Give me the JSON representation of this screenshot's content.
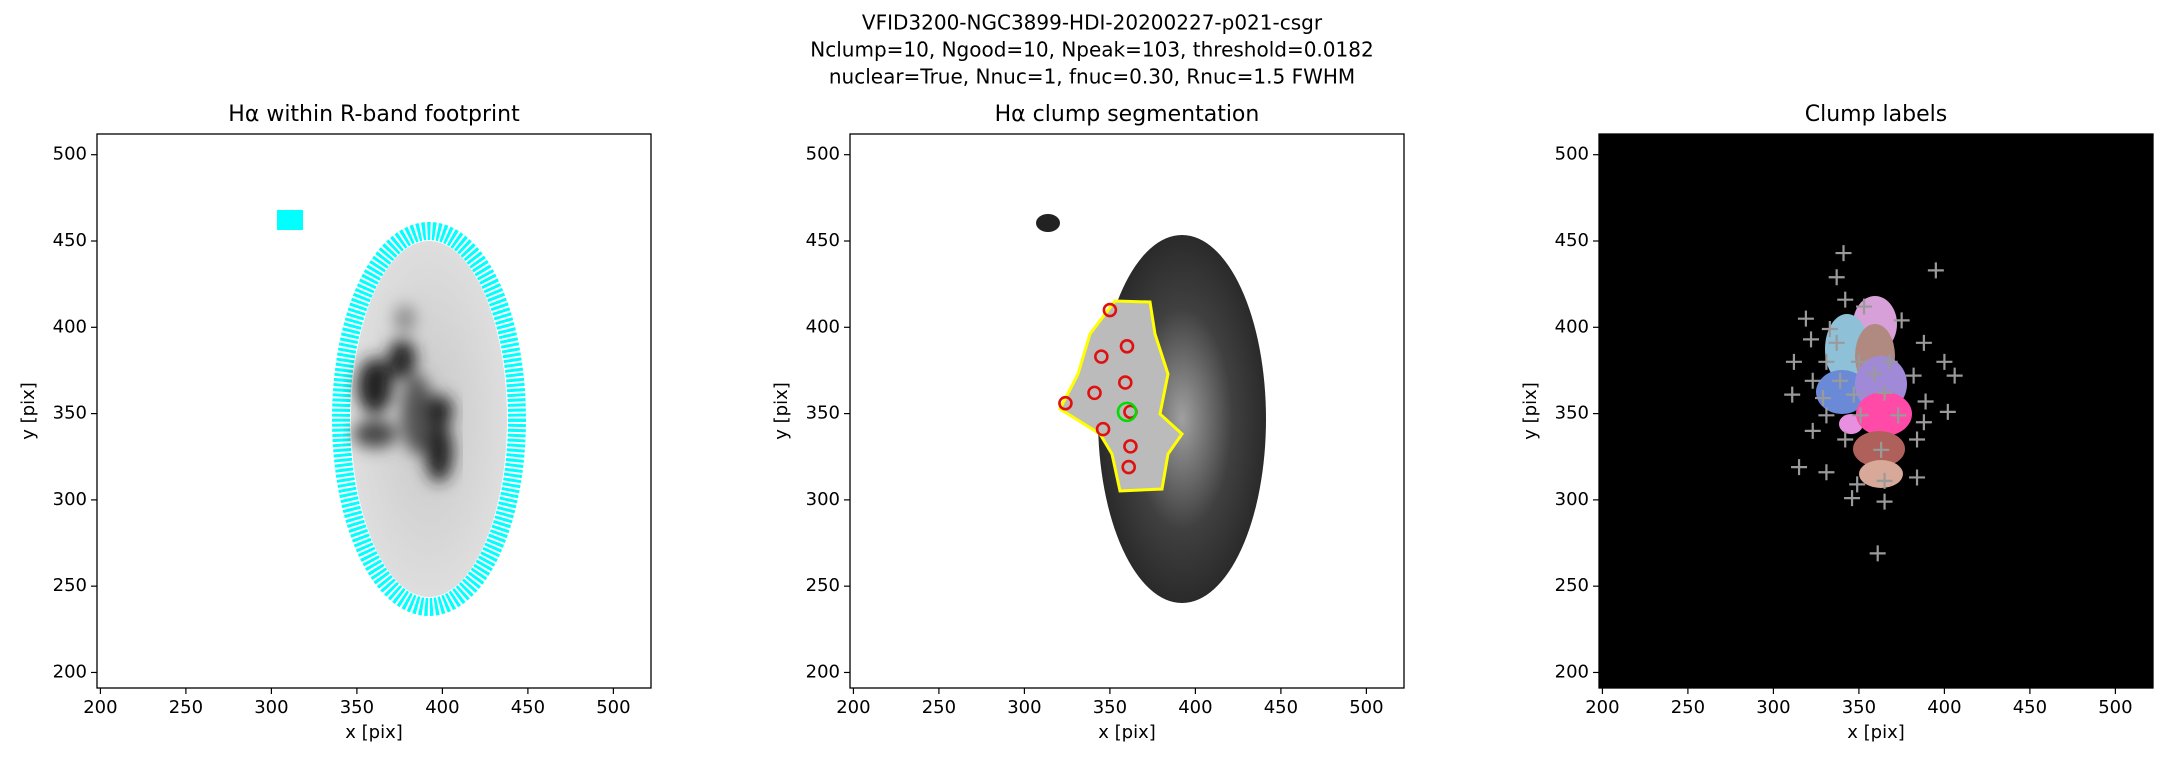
{
  "suptitle": [
    "VFID3200-NGC3899-HDI-20200227-p021-csgr",
    "Nclump=10, Ngood=10, Npeak=103, threshold=0.0182",
    "nuclear=True, Nnuc=1, fnuc=0.30, Rnuc=1.5 FWHM"
  ],
  "chart_data": [
    {
      "type": "image",
      "title": "Hα within R-band footprint",
      "xlabel": "x [pix]",
      "ylabel": "y [pix]",
      "xlim": [
        198,
        522
      ],
      "ylim": [
        191,
        512
      ],
      "xticks": [
        200,
        250,
        300,
        350,
        400,
        450,
        500
      ],
      "yticks": [
        200,
        250,
        300,
        350,
        400,
        450,
        500
      ]
    },
    {
      "type": "image",
      "title": "Hα clump segmentation",
      "xlabel": "x [pix]",
      "ylabel": "y [pix]",
      "xlim": [
        198,
        522
      ],
      "ylim": [
        191,
        512
      ],
      "xticks": [
        200,
        250,
        300,
        350,
        400,
        450,
        500
      ],
      "yticks": [
        200,
        250,
        300,
        350,
        400,
        450,
        500
      ],
      "clumps": {
        "color": "#e01010",
        "marker": "circle",
        "x": [
          350,
          345,
          360,
          359,
          341,
          324,
          362,
          346,
          362,
          361
        ],
        "y": [
          410,
          383,
          389,
          368,
          362,
          356,
          351,
          341,
          331,
          319
        ]
      },
      "nucleus": {
        "color": "#00dd00",
        "marker": "circle",
        "x": [
          360
        ],
        "y": [
          351
        ]
      }
    },
    {
      "type": "image",
      "title": "Clump labels",
      "xlabel": "x [pix]",
      "ylabel": "y [pix]",
      "xlim": [
        198,
        522
      ],
      "ylim": [
        191,
        512
      ],
      "xticks": [
        200,
        250,
        300,
        350,
        400,
        450,
        500
      ],
      "yticks": [
        200,
        250,
        300,
        350,
        400,
        450,
        500
      ],
      "peaks": {
        "color": "#9a9a9a",
        "marker": "plus",
        "x": [
          341,
          337,
          395,
          342,
          319,
          333,
          353,
          375,
          322,
          337,
          388,
          312,
          331,
          350,
          368,
          400,
          323,
          339,
          359,
          382,
          406,
          311,
          329,
          347,
          365,
          389,
          402,
          331,
          351,
          373,
          388,
          323,
          342,
          363,
          384,
          315,
          331,
          349,
          365,
          384,
          346,
          365,
          361
        ],
        "y": [
          443,
          429,
          433,
          416,
          405,
          399,
          412,
          404,
          393,
          391,
          391,
          380,
          380,
          380,
          380,
          380,
          369,
          369,
          373,
          372,
          372,
          361,
          359,
          361,
          362,
          357,
          351,
          349,
          349,
          349,
          345,
          340,
          335,
          329,
          335,
          319,
          316,
          309,
          311,
          313,
          301,
          299,
          269
        ]
      }
    }
  ]
}
